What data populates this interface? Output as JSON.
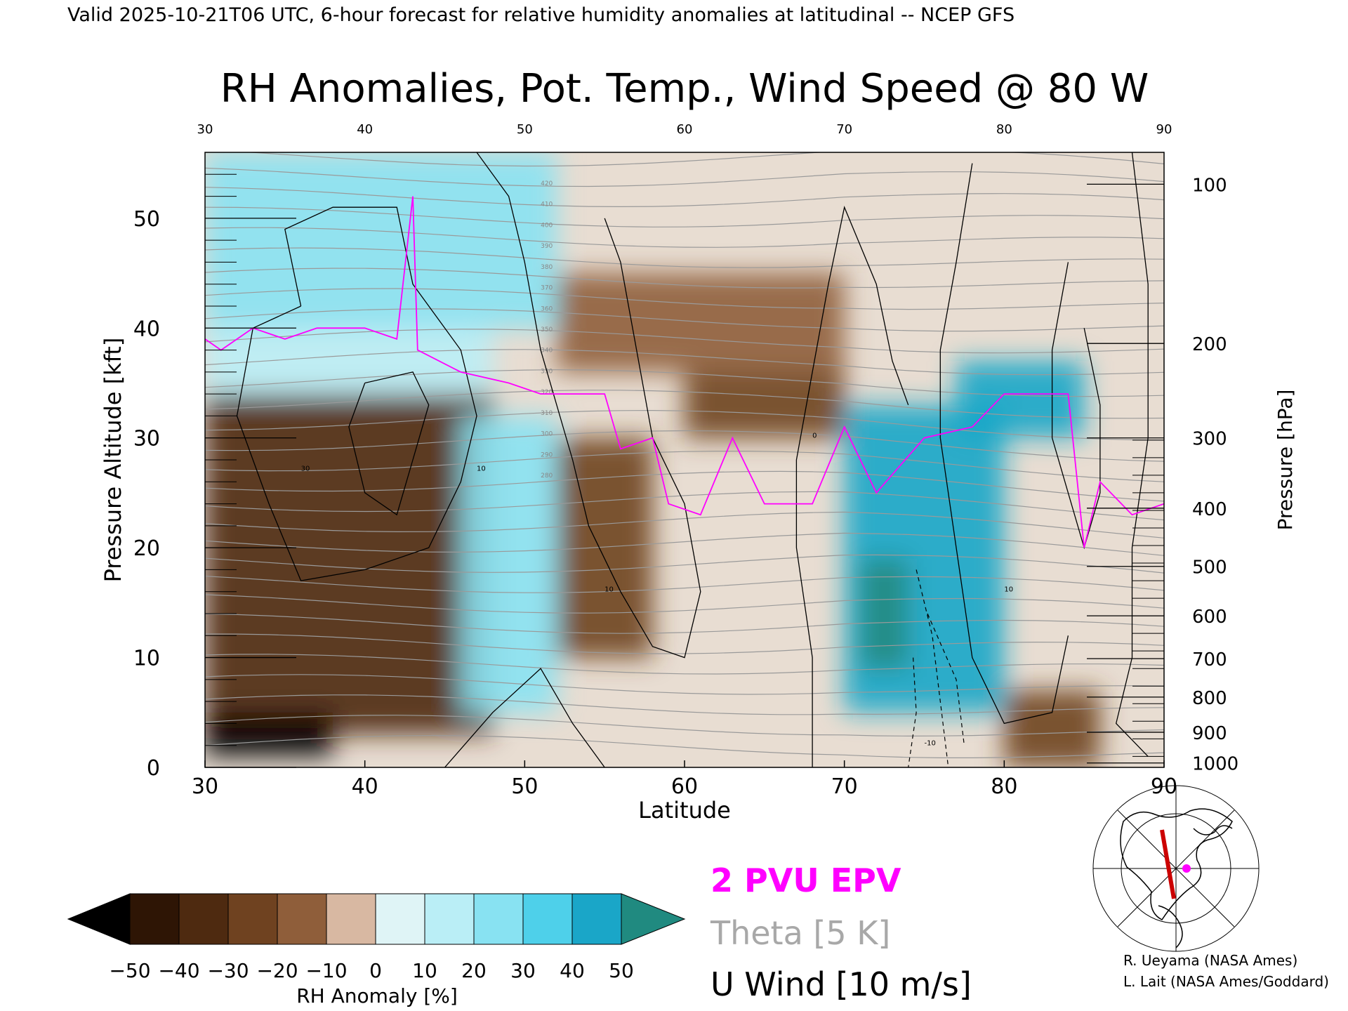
{
  "header": {
    "valid_line": "Valid 2025-10-21T06 UTC, 6-hour forecast for relative humidity anomalies at latitudinal -- NCEP GFS"
  },
  "chart_data": {
    "type": "heatmap",
    "title": "RH Anomalies, Pot. Temp., Wind Speed @ 80 W",
    "xlabel": "Latitude",
    "ylabel_left": "Pressure Altitude [kft]",
    "ylabel_right": "Pressure [hPa]",
    "xlim": [
      30,
      90
    ],
    "ylim": [
      0,
      56
    ],
    "x_ticks": [
      30,
      40,
      50,
      60,
      70,
      80,
      90
    ],
    "x_tick_labels": [
      "30",
      "40",
      "50",
      "60",
      "70",
      "80",
      "90"
    ],
    "top_tick_labels": [
      "30",
      "40",
      "50",
      "60",
      "70",
      "80",
      "90"
    ],
    "y_ticks": [
      0,
      10,
      20,
      30,
      40,
      50
    ],
    "y_tick_labels": [
      "0",
      "10",
      "20",
      "30",
      "40",
      "50"
    ],
    "pressure_ticks": [
      {
        "hpa": "100",
        "kft": 53.1
      },
      {
        "hpa": "200",
        "kft": 38.6
      },
      {
        "hpa": "300",
        "kft": 30.0
      },
      {
        "hpa": "400",
        "kft": 23.6
      },
      {
        "hpa": "500",
        "kft": 18.3
      },
      {
        "hpa": "600",
        "kft": 13.8
      },
      {
        "hpa": "700",
        "kft": 9.9
      },
      {
        "hpa": "800",
        "kft": 6.4
      },
      {
        "hpa": "900",
        "kft": 3.2
      },
      {
        "hpa": "1000",
        "kft": 0.4
      }
    ],
    "legend": {
      "epv": "2 PVU EPV",
      "theta": "Theta [5 K]",
      "uwind": "U Wind [10 m/s]",
      "epv_color": "#ff00ff",
      "theta_color": "#a0a0a0",
      "uwind_color": "#000000"
    },
    "colorbar": {
      "label": "RH Anomaly [%]",
      "tick_labels": [
        "−50",
        "−40",
        "−30",
        "−20",
        "−10",
        "0",
        "10",
        "20",
        "30",
        "40",
        "50"
      ],
      "colors": [
        "#2e1505",
        "#4e2a10",
        "#6f4220",
        "#8f5e3a",
        "#b08060",
        "#d8b8a2",
        "#dff4f6",
        "#baeef6",
        "#88e2f2",
        "#4ed0ea",
        "#1aa6c8"
      ],
      "under_color": "#000000",
      "over_color": "#208a80"
    },
    "theta_contour_labels": [
      "420",
      "410",
      "400",
      "390",
      "380",
      "370",
      "360",
      "350",
      "340",
      "330",
      "320",
      "310",
      "300",
      "290",
      "280"
    ],
    "wind_contour_labels": [
      "10",
      "30",
      "0",
      "-10"
    ],
    "regions": [
      {
        "lat": [
          30,
          48
        ],
        "kft": [
          3,
          34
        ],
        "anomaly": -35
      },
      {
        "lat": [
          30,
          38
        ],
        "kft": [
          1,
          5
        ],
        "anomaly": -55
      },
      {
        "lat": [
          30,
          48
        ],
        "kft": [
          34,
          40
        ],
        "anomaly": 15
      },
      {
        "lat": [
          30,
          52
        ],
        "kft": [
          40,
          56
        ],
        "anomaly": 20
      },
      {
        "lat": [
          46,
          52
        ],
        "kft": [
          5,
          32
        ],
        "anomaly": 25
      },
      {
        "lat": [
          52,
          58
        ],
        "kft": [
          10,
          30
        ],
        "anomaly": -30
      },
      {
        "lat": [
          60,
          70
        ],
        "kft": [
          30,
          36
        ],
        "anomaly": -25
      },
      {
        "lat": [
          52,
          70
        ],
        "kft": [
          36,
          45
        ],
        "anomaly": -12
      },
      {
        "lat": [
          70,
          80
        ],
        "kft": [
          5,
          33
        ],
        "anomaly": 45
      },
      {
        "lat": [
          71,
          74
        ],
        "kft": [
          9,
          19
        ],
        "anomaly": 55
      },
      {
        "lat": [
          77,
          85
        ],
        "kft": [
          30,
          37
        ],
        "anomaly": 45
      },
      {
        "lat": [
          80,
          86
        ],
        "kft": [
          0,
          7
        ],
        "anomaly": -28
      }
    ],
    "epv_2pvu_line": [
      [
        30,
        39
      ],
      [
        31,
        38
      ],
      [
        33,
        40
      ],
      [
        35,
        39
      ],
      [
        37,
        40
      ],
      [
        40,
        40
      ],
      [
        42,
        39
      ],
      [
        43,
        52
      ],
      [
        43.3,
        38
      ],
      [
        46,
        36
      ],
      [
        49,
        35
      ],
      [
        51,
        34
      ],
      [
        53,
        34
      ],
      [
        55,
        34
      ],
      [
        56,
        29
      ],
      [
        58,
        30
      ],
      [
        59,
        24
      ],
      [
        61,
        23
      ],
      [
        63,
        30
      ],
      [
        65,
        24
      ],
      [
        68,
        24
      ],
      [
        70,
        31
      ],
      [
        72,
        25
      ],
      [
        75,
        30
      ],
      [
        78,
        31
      ],
      [
        80,
        34
      ],
      [
        82,
        34
      ],
      [
        84,
        34
      ],
      [
        85,
        20
      ],
      [
        86,
        26
      ],
      [
        88,
        23
      ],
      [
        90,
        24
      ]
    ]
  },
  "map_inset": {
    "section_line_color": "#cc0000",
    "marker_color": "#ff00ff"
  },
  "credits": {
    "line1": "R. Ueyama (NASA Ames)",
    "line2": "L. Lait (NASA Ames/Goddard)"
  }
}
